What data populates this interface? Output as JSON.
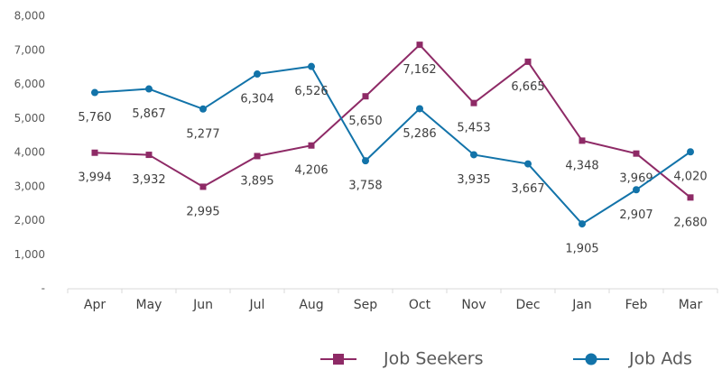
{
  "chart_data": {
    "type": "line",
    "categories": [
      "Apr",
      "May",
      "Jun",
      "Jul",
      "Aug",
      "Sep",
      "Oct",
      "Nov",
      "Dec",
      "Jan",
      "Feb",
      "Mar"
    ],
    "series": [
      {
        "name": "Job Seekers",
        "color": "#8e2a66",
        "marker": "square",
        "values": [
          3994,
          3932,
          2995,
          3895,
          4206,
          5650,
          7162,
          5453,
          6665,
          4348,
          3969,
          2680
        ],
        "value_labels": [
          "3,994",
          "3,932",
          "2,995",
          "3,895",
          "4,206",
          "5,650",
          "7,162",
          "5,453",
          "6,665",
          "4,348",
          "3,969",
          "2,680"
        ]
      },
      {
        "name": "Job Ads",
        "color": "#1273a9",
        "marker": "circle",
        "values": [
          5760,
          5867,
          5277,
          6304,
          6526,
          3758,
          5286,
          3935,
          3667,
          1905,
          2907,
          4020
        ],
        "value_labels": [
          "5,760",
          "5,867",
          "5,277",
          "6,304",
          "6,526",
          "3,758",
          "5,286",
          "3,935",
          "3,667",
          "1,905",
          "2,907",
          "4,020"
        ]
      }
    ],
    "ylim": [
      0,
      8000
    ],
    "yticks": [
      {
        "value": 0,
        "label": "-"
      },
      {
        "value": 1000,
        "label": "1,000"
      },
      {
        "value": 2000,
        "label": "2,000"
      },
      {
        "value": 3000,
        "label": "3,000"
      },
      {
        "value": 4000,
        "label": "4,000"
      },
      {
        "value": 5000,
        "label": "5,000"
      },
      {
        "value": 6000,
        "label": "6,000"
      },
      {
        "value": 7000,
        "label": "7,000"
      },
      {
        "value": 8000,
        "label": "8,000"
      }
    ],
    "grid": false,
    "legend": "bottom-right"
  }
}
